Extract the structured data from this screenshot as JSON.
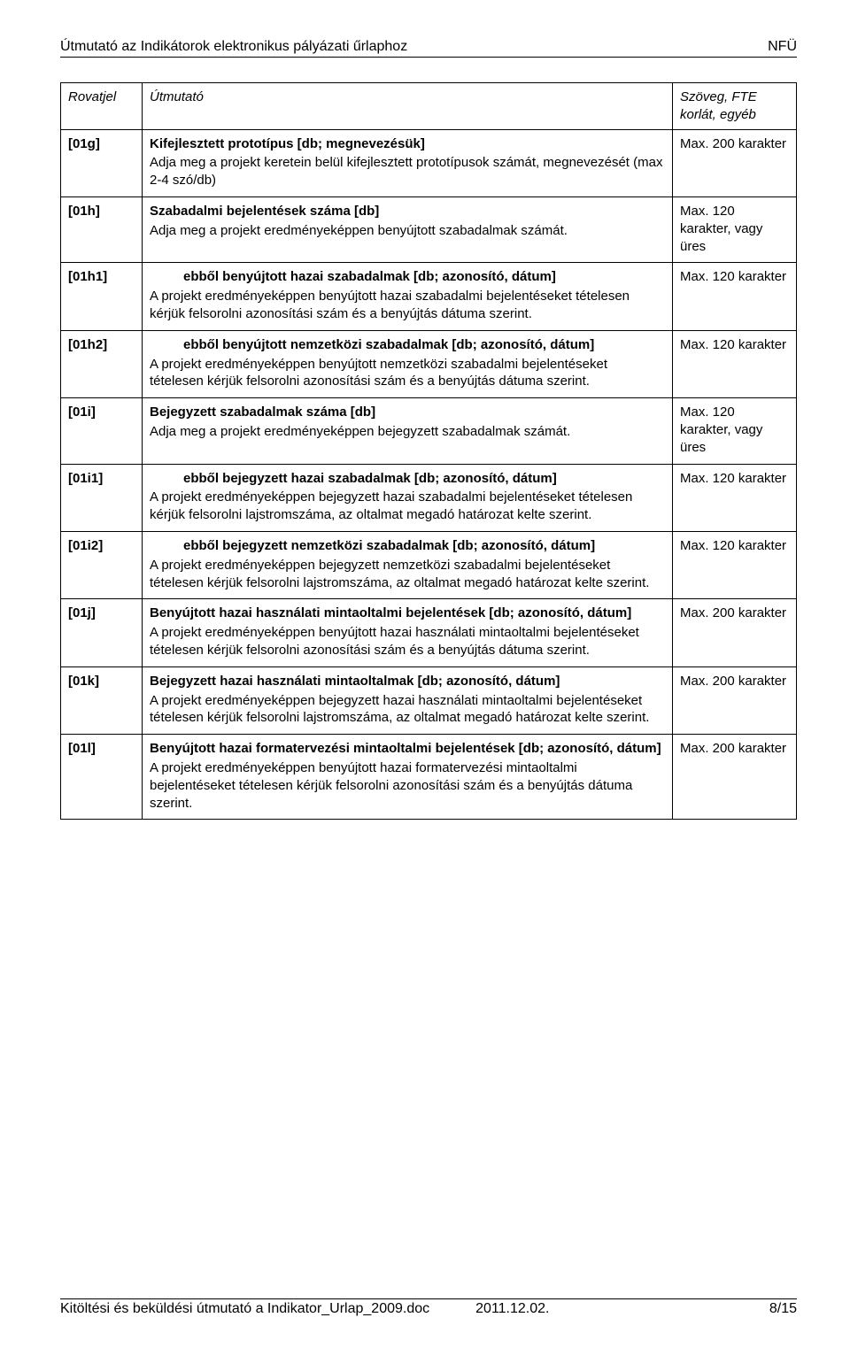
{
  "header": {
    "left": "Útmutató az Indikátorok elektronikus pályázati űrlaphoz",
    "right": "NFÜ"
  },
  "table_head": {
    "c1": "Rovatjel",
    "c2": "Útmutató",
    "c3": "Szöveg, FTE korlát, egyéb"
  },
  "rows": [
    {
      "code": "[01g]",
      "title": "Kifejlesztett prototípus [db; megnevezésük]",
      "desc": "Adja meg a projekt keretein belül kifejlesztett prototípusok számát, megnevezését (max 2-4 szó/db)",
      "limit": "Max. 200 karakter",
      "indent": false
    },
    {
      "code": "[01h]",
      "title": "Szabadalmi bejelentések száma [db]",
      "desc": "Adja meg a projekt eredményeképpen benyújtott szabadalmak számát.",
      "limit": "Max. 120 karakter, vagy üres",
      "indent": false
    },
    {
      "code": "[01h1]",
      "title": "ebből benyújtott hazai szabadalmak [db; azonosító, dátum]",
      "desc": "A projekt eredményeképpen benyújtott hazai szabadalmi bejelentéseket tételesen kérjük felsorolni azonosítási szám és a benyújtás dátuma szerint.",
      "limit": "Max. 120 karakter",
      "indent": true
    },
    {
      "code": "[01h2]",
      "title": "ebből benyújtott nemzetközi szabadalmak [db; azonosító, dátum]",
      "desc": "A projekt eredményeképpen benyújtott nemzetközi szabadalmi bejelentéseket tételesen kérjük felsorolni azonosítási szám és a benyújtás dátuma szerint.",
      "limit": "Max. 120 karakter",
      "indent": true
    },
    {
      "code": "[01i]",
      "title": "Bejegyzett szabadalmak száma [db]",
      "desc": "Adja meg a projekt eredményeképpen bejegyzett szabadalmak számát.",
      "limit": "Max. 120 karakter, vagy üres",
      "indent": false
    },
    {
      "code": "[01i1]",
      "title": "ebből bejegyzett hazai szabadalmak [db; azonosító, dátum]",
      "desc": "A projekt eredményeképpen bejegyzett hazai szabadalmi bejelentéseket tételesen kérjük felsorolni lajstromszáma, az oltalmat megadó határozat kelte szerint.",
      "limit": "Max. 120 karakter",
      "indent": true
    },
    {
      "code": "[01i2]",
      "title": "ebből bejegyzett nemzetközi szabadalmak [db; azonosító, dátum]",
      "desc": "A projekt eredményeképpen bejegyzett nemzetközi szabadalmi bejelentéseket tételesen kérjük felsorolni lajstromszáma, az oltalmat megadó határozat kelte szerint.",
      "limit": "Max. 120 karakter",
      "indent": true
    },
    {
      "code": "[01j]",
      "title": "Benyújtott hazai használati mintaoltalmi bejelentések [db; azonosító, dátum]",
      "desc": "A projekt eredményeképpen benyújtott hazai használati mintaoltalmi bejelentéseket tételesen kérjük felsorolni azonosítási szám és a benyújtás dátuma szerint.",
      "limit": "Max. 200 karakter",
      "indent": false
    },
    {
      "code": "[01k]",
      "title": "Bejegyzett hazai használati mintaoltalmak [db; azonosító, dátum]",
      "desc": "A projekt eredményeképpen bejegyzett hazai használati mintaoltalmi bejelentéseket tételesen kérjük felsorolni lajstromszáma, az oltalmat megadó határozat kelte szerint.",
      "limit": "Max. 200 karakter",
      "indent": false
    },
    {
      "code": "[01l]",
      "title": "Benyújtott hazai formatervezési mintaoltalmi bejelentések [db; azonosító, dátum]",
      "desc": "A projekt eredményeképpen benyújtott hazai formatervezési mintaoltalmi bejelentéseket tételesen kérjük felsorolni azonosítási szám és a benyújtás dátuma szerint.",
      "limit": "Max. 200 karakter",
      "indent": false
    }
  ],
  "footer": {
    "left": "Kitöltési és beküldési útmutató a Indikator_Urlap_2009.doc",
    "center": "2011.12.02.",
    "right": "8/15"
  }
}
